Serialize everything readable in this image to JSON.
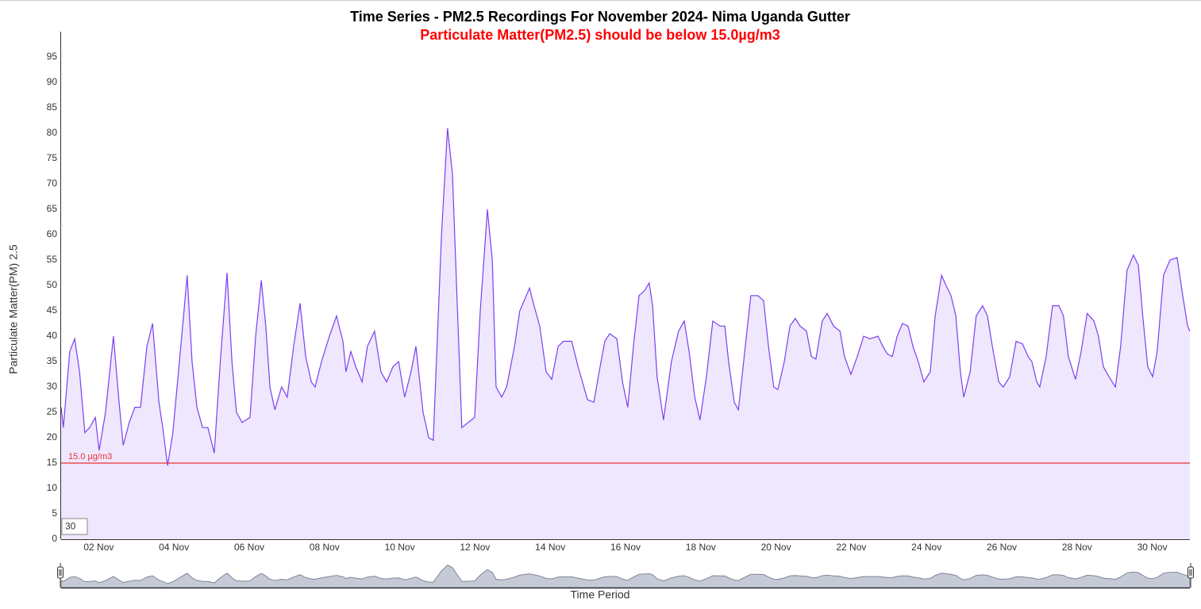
{
  "chart_data": {
    "type": "area",
    "title": "Time Series - PM2.5 Recordings For November 2024- Nima Uganda Gutter",
    "subtitle": "Particulate Matter(PM2.5) should be below 15.0µg/m3",
    "y_label": "Particulate Matter(PM) 2.5",
    "x_label": "Time Period",
    "input_value": "30",
    "color": "#7b3ff2",
    "fill": "#efe7fd",
    "threshold": {
      "value": 15,
      "label": "15.0 µg/m3",
      "color": "#e8333b"
    },
    "xlim": [
      1,
      31
    ],
    "xticks": [
      {
        "value": 2,
        "label": "02 Nov"
      },
      {
        "value": 4,
        "label": "04 Nov"
      },
      {
        "value": 6,
        "label": "06 Nov"
      },
      {
        "value": 8,
        "label": "08 Nov"
      },
      {
        "value": 10,
        "label": "10 Nov"
      },
      {
        "value": 12,
        "label": "12 Nov"
      },
      {
        "value": 14,
        "label": "14 Nov"
      },
      {
        "value": 16,
        "label": "16 Nov"
      },
      {
        "value": 18,
        "label": "18 Nov"
      },
      {
        "value": 20,
        "label": "20 Nov"
      },
      {
        "value": 22,
        "label": "22 Nov"
      },
      {
        "value": 24,
        "label": "24 Nov"
      },
      {
        "value": 26,
        "label": "26 Nov"
      },
      {
        "value": 28,
        "label": "28 Nov"
      },
      {
        "value": 30,
        "label": "30 Nov"
      }
    ],
    "ylim": [
      0,
      100
    ],
    "yticks": [
      0,
      5,
      10,
      15,
      20,
      25,
      30,
      35,
      40,
      45,
      50,
      55,
      60,
      65,
      70,
      75,
      80,
      85,
      90,
      95
    ],
    "x": [
      1.0,
      1.06,
      1.23,
      1.36,
      1.49,
      1.63,
      1.76,
      1.91,
      2.01,
      2.18,
      2.39,
      2.54,
      2.65,
      2.81,
      2.96,
      3.11,
      3.28,
      3.43,
      3.6,
      3.7,
      3.83,
      3.97,
      4.23,
      4.35,
      4.48,
      4.61,
      4.76,
      4.9,
      5.07,
      5.24,
      5.41,
      5.54,
      5.66,
      5.81,
      6.02,
      6.17,
      6.32,
      6.44,
      6.55,
      6.68,
      6.86,
      7.01,
      7.18,
      7.35,
      7.5,
      7.65,
      7.75,
      7.92,
      8.13,
      8.32,
      8.49,
      8.57,
      8.7,
      8.83,
      9.0,
      9.14,
      9.33,
      9.5,
      9.65,
      9.82,
      9.97,
      10.13,
      10.3,
      10.43,
      10.62,
      10.77,
      10.89,
      11.11,
      11.27,
      11.4,
      11.51,
      11.65,
      11.82,
      11.99,
      12.14,
      12.33,
      12.46,
      12.56,
      12.71,
      12.84,
      13.05,
      13.19,
      13.45,
      13.57,
      13.72,
      13.89,
      14.04,
      14.21,
      14.35,
      14.57,
      14.74,
      14.99,
      15.16,
      15.3,
      15.45,
      15.58,
      15.77,
      15.92,
      16.06,
      16.21,
      16.36,
      16.51,
      16.63,
      16.72,
      16.84,
      17.01,
      17.22,
      17.41,
      17.56,
      17.69,
      17.84,
      17.98,
      18.15,
      18.32,
      18.51,
      18.64,
      18.74,
      18.89,
      19.0,
      19.14,
      19.33,
      19.52,
      19.67,
      19.8,
      19.94,
      20.05,
      20.22,
      20.37,
      20.51,
      20.64,
      20.81,
      20.94,
      21.06,
      21.23,
      21.36,
      21.53,
      21.7,
      21.82,
      21.99,
      22.16,
      22.33,
      22.5,
      22.71,
      22.84,
      22.96,
      23.09,
      23.22,
      23.36,
      23.51,
      23.64,
      23.78,
      23.93,
      24.1,
      24.23,
      24.4,
      24.52,
      24.65,
      24.78,
      24.9,
      24.99,
      25.16,
      25.32,
      25.49,
      25.62,
      25.75,
      25.92,
      26.04,
      26.21,
      26.38,
      26.55,
      26.7,
      26.8,
      26.93,
      27.01,
      27.18,
      27.35,
      27.52,
      27.64,
      27.77,
      27.96,
      28.11,
      28.27,
      28.45,
      28.57,
      28.7,
      28.85,
      29.02,
      29.16,
      29.33,
      29.5,
      29.63,
      29.76,
      29.88,
      30.01,
      30.13,
      30.3,
      30.47,
      30.66,
      30.81,
      30.94,
      31.0
    ],
    "values": [
      26,
      22,
      37,
      39.5,
      33,
      21,
      22,
      24,
      17.5,
      25,
      40,
      27,
      18.5,
      23,
      26,
      26,
      38,
      42.5,
      27,
      22,
      14.5,
      21,
      42,
      52,
      35,
      26,
      22,
      22,
      17,
      36,
      52.5,
      35,
      25,
      23,
      24,
      40,
      51,
      42,
      30,
      25.5,
      30,
      28,
      38,
      46.5,
      36,
      31,
      30,
      35,
      40,
      44,
      39,
      33,
      37,
      34,
      31,
      38,
      41,
      33,
      31,
      34,
      35,
      28,
      33,
      38,
      25,
      20,
      19.5,
      60,
      81,
      72,
      50,
      22,
      23,
      24,
      45,
      65,
      55,
      30,
      28,
      30,
      38,
      45,
      49.5,
      46,
      42,
      33,
      31.5,
      38,
      39,
      39,
      34,
      27.5,
      27,
      33,
      39,
      40.5,
      39.5,
      31,
      26,
      38,
      48,
      49,
      50.5,
      46,
      32,
      23.5,
      35,
      41,
      43,
      37,
      28,
      23.5,
      32,
      43,
      42,
      42,
      35,
      27,
      25.5,
      35,
      48,
      48,
      47,
      38,
      30,
      29.5,
      35,
      42,
      43.5,
      42,
      41,
      36,
      35.5,
      43,
      44.5,
      42,
      41,
      36,
      32.5,
      36,
      40,
      39.5,
      40,
      38,
      36.5,
      36,
      40,
      42.5,
      42,
      38,
      35,
      31,
      33,
      44,
      52,
      50,
      48,
      44,
      33,
      28,
      33,
      44,
      46,
      44,
      38,
      31,
      30,
      32,
      39,
      38.5,
      36,
      35,
      31,
      30,
      36,
      46,
      46,
      44,
      36,
      31.5,
      37,
      44.5,
      43,
      40,
      34,
      32,
      30,
      38,
      53,
      56,
      54,
      43,
      34,
      32,
      37,
      52,
      55,
      55.5,
      48,
      42,
      41
    ]
  }
}
